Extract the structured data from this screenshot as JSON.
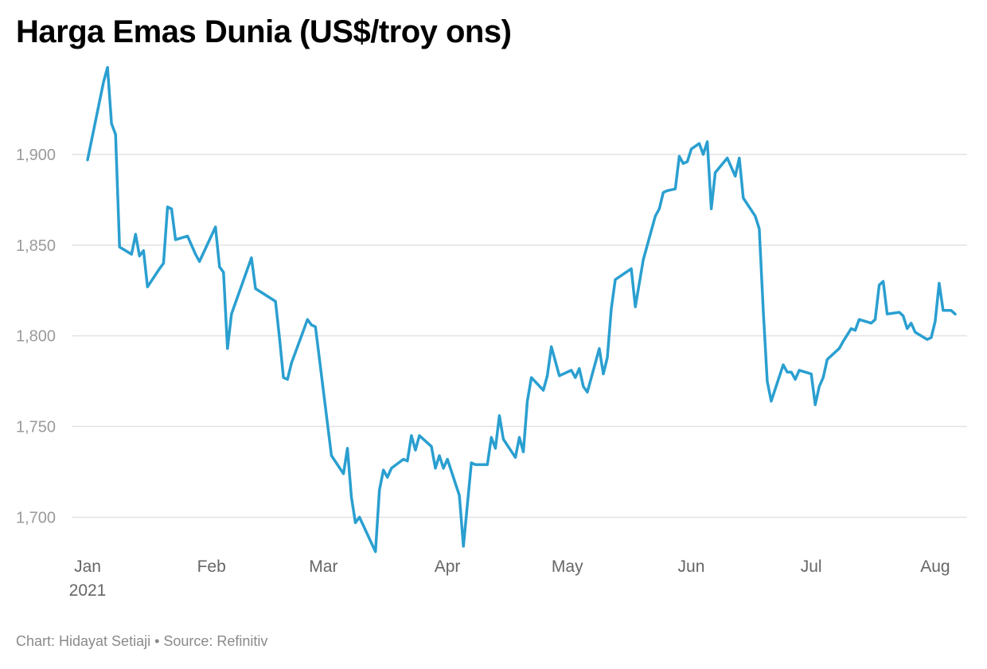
{
  "title": "Harga Emas Dunia (US$/troy ons)",
  "footer": "Chart: Hidayat Setiaji • Source: Refinitiv",
  "colors": {
    "line": "#2a9fd0",
    "grid": "#e2e2e2"
  },
  "chart_data": {
    "type": "line",
    "title": "Harga Emas Dunia (US$/troy ons)",
    "xlabel": "",
    "ylabel": "",
    "ylim": [
      1680,
      1950
    ],
    "grid": true,
    "legend": "none",
    "x_range": [
      "2021-01-01",
      "2021-08-06"
    ],
    "y_ticks": [
      1700,
      1750,
      1800,
      1850,
      1900
    ],
    "y_tick_labels": [
      "1,700",
      "1,750",
      "1,800",
      "1,850",
      "1,900"
    ],
    "x_ticks": [
      {
        "date": "2021-01-01",
        "label": "Jan",
        "sublabel": "2021"
      },
      {
        "date": "2021-02-01",
        "label": "Feb"
      },
      {
        "date": "2021-03-01",
        "label": "Mar"
      },
      {
        "date": "2021-04-01",
        "label": "Apr"
      },
      {
        "date": "2021-05-01",
        "label": "May"
      },
      {
        "date": "2021-06-01",
        "label": "Jun"
      },
      {
        "date": "2021-07-01",
        "label": "Jul"
      },
      {
        "date": "2021-08-01",
        "label": "Aug"
      }
    ],
    "series": [
      {
        "points": [
          [
            "2021-01-01",
            1897
          ],
          [
            "2021-01-05",
            1940
          ],
          [
            "2021-01-06",
            1948
          ],
          [
            "2021-01-07",
            1917
          ],
          [
            "2021-01-08",
            1911
          ],
          [
            "2021-01-09",
            1849
          ],
          [
            "2021-01-12",
            1845
          ],
          [
            "2021-01-13",
            1856
          ],
          [
            "2021-01-14",
            1844
          ],
          [
            "2021-01-15",
            1847
          ],
          [
            "2021-01-16",
            1827
          ],
          [
            "2021-01-19",
            1837
          ],
          [
            "2021-01-20",
            1840
          ],
          [
            "2021-01-21",
            1871
          ],
          [
            "2021-01-22",
            1870
          ],
          [
            "2021-01-23",
            1853
          ],
          [
            "2021-01-26",
            1855
          ],
          [
            "2021-01-28",
            1845
          ],
          [
            "2021-01-29",
            1841
          ],
          [
            "2021-02-02",
            1860
          ],
          [
            "2021-02-03",
            1838
          ],
          [
            "2021-02-04",
            1835
          ],
          [
            "2021-02-05",
            1793
          ],
          [
            "2021-02-06",
            1812
          ],
          [
            "2021-02-11",
            1843
          ],
          [
            "2021-02-12",
            1826
          ],
          [
            "2021-02-17",
            1819
          ],
          [
            "2021-02-18",
            1799
          ],
          [
            "2021-02-19",
            1777
          ],
          [
            "2021-02-20",
            1776
          ],
          [
            "2021-02-21",
            1785
          ],
          [
            "2021-02-25",
            1809
          ],
          [
            "2021-02-26",
            1806
          ],
          [
            "2021-02-27",
            1805
          ],
          [
            "2021-03-03",
            1734
          ],
          [
            "2021-03-06",
            1724
          ],
          [
            "2021-03-07",
            1738
          ],
          [
            "2021-03-08",
            1711
          ],
          [
            "2021-03-09",
            1697
          ],
          [
            "2021-03-10",
            1700
          ],
          [
            "2021-03-14",
            1681
          ],
          [
            "2021-03-15",
            1715
          ],
          [
            "2021-03-16",
            1726
          ],
          [
            "2021-03-17",
            1722
          ],
          [
            "2021-03-18",
            1727
          ],
          [
            "2021-03-21",
            1732
          ],
          [
            "2021-03-22",
            1731
          ],
          [
            "2021-03-23",
            1745
          ],
          [
            "2021-03-24",
            1737
          ],
          [
            "2021-03-25",
            1745
          ],
          [
            "2021-03-28",
            1739
          ],
          [
            "2021-03-29",
            1727
          ],
          [
            "2021-03-30",
            1734
          ],
          [
            "2021-03-31",
            1727
          ],
          [
            "2021-04-01",
            1732
          ],
          [
            "2021-04-04",
            1712
          ],
          [
            "2021-04-05",
            1684
          ],
          [
            "2021-04-07",
            1730
          ],
          [
            "2021-04-08",
            1729
          ],
          [
            "2021-04-11",
            1729
          ],
          [
            "2021-04-12",
            1744
          ],
          [
            "2021-04-13",
            1738
          ],
          [
            "2021-04-14",
            1756
          ],
          [
            "2021-04-15",
            1743
          ],
          [
            "2021-04-18",
            1733
          ],
          [
            "2021-04-19",
            1744
          ],
          [
            "2021-04-20",
            1736
          ],
          [
            "2021-04-21",
            1764
          ],
          [
            "2021-04-22",
            1777
          ],
          [
            "2021-04-25",
            1770
          ],
          [
            "2021-04-26",
            1778
          ],
          [
            "2021-04-27",
            1794
          ],
          [
            "2021-04-29",
            1778
          ],
          [
            "2021-05-02",
            1781
          ],
          [
            "2021-05-03",
            1777
          ],
          [
            "2021-05-04",
            1782
          ],
          [
            "2021-05-05",
            1772
          ],
          [
            "2021-05-06",
            1769
          ],
          [
            "2021-05-09",
            1793
          ],
          [
            "2021-05-10",
            1779
          ],
          [
            "2021-05-11",
            1788
          ],
          [
            "2021-05-12",
            1815
          ],
          [
            "2021-05-13",
            1831
          ],
          [
            "2021-05-17",
            1837
          ],
          [
            "2021-05-18",
            1816
          ],
          [
            "2021-05-20",
            1842
          ],
          [
            "2021-05-23",
            1866
          ],
          [
            "2021-05-24",
            1870
          ],
          [
            "2021-05-25",
            1879
          ],
          [
            "2021-05-26",
            1880
          ],
          [
            "2021-05-28",
            1881
          ],
          [
            "2021-05-29",
            1899
          ],
          [
            "2021-05-30",
            1895
          ],
          [
            "2021-05-31",
            1896
          ],
          [
            "2021-06-01",
            1903
          ],
          [
            "2021-06-03",
            1906
          ],
          [
            "2021-06-04",
            1900
          ],
          [
            "2021-06-05",
            1907
          ],
          [
            "2021-06-06",
            1870
          ],
          [
            "2021-06-07",
            1890
          ],
          [
            "2021-06-10",
            1898
          ],
          [
            "2021-06-12",
            1888
          ],
          [
            "2021-06-13",
            1898
          ],
          [
            "2021-06-14",
            1876
          ],
          [
            "2021-06-17",
            1866
          ],
          [
            "2021-06-18",
            1859
          ],
          [
            "2021-06-19",
            1814
          ],
          [
            "2021-06-20",
            1775
          ],
          [
            "2021-06-21",
            1764
          ],
          [
            "2021-06-24",
            1784
          ],
          [
            "2021-06-25",
            1780
          ],
          [
            "2021-06-26",
            1780
          ],
          [
            "2021-06-27",
            1776
          ],
          [
            "2021-06-28",
            1781
          ],
          [
            "2021-07-01",
            1779
          ],
          [
            "2021-07-02",
            1762
          ],
          [
            "2021-07-03",
            1772
          ],
          [
            "2021-07-04",
            1777
          ],
          [
            "2021-07-05",
            1787
          ],
          [
            "2021-07-08",
            1793
          ],
          [
            "2021-07-09",
            1797
          ],
          [
            "2021-07-11",
            1804
          ],
          [
            "2021-07-12",
            1803
          ],
          [
            "2021-07-13",
            1809
          ],
          [
            "2021-07-16",
            1807
          ],
          [
            "2021-07-17",
            1809
          ],
          [
            "2021-07-18",
            1828
          ],
          [
            "2021-07-19",
            1830
          ],
          [
            "2021-07-20",
            1812
          ],
          [
            "2021-07-23",
            1813
          ],
          [
            "2021-07-24",
            1811
          ],
          [
            "2021-07-25",
            1804
          ],
          [
            "2021-07-26",
            1807
          ],
          [
            "2021-07-27",
            1802
          ],
          [
            "2021-07-30",
            1798
          ],
          [
            "2021-07-31",
            1799
          ],
          [
            "2021-08-01",
            1808
          ],
          [
            "2021-08-02",
            1829
          ],
          [
            "2021-08-03",
            1814
          ],
          [
            "2021-08-05",
            1814
          ],
          [
            "2021-08-06",
            1812
          ]
        ]
      }
    ]
  }
}
